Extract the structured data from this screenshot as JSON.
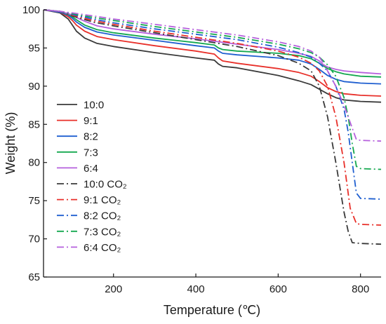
{
  "chart_data": {
    "type": "line",
    "xlabel": "Temperature (℃)",
    "ylabel": "Weight (%)",
    "xlim": [
      30,
      850
    ],
    "ylim": [
      65,
      100
    ],
    "xticks": [
      200,
      400,
      600,
      800
    ],
    "yticks": [
      65,
      70,
      75,
      80,
      85,
      90,
      95,
      100
    ],
    "grid": false,
    "legend_position": "left",
    "series": [
      {
        "name": "10:0",
        "color": "#3a3a3a",
        "dash": "solid",
        "x": [
          30,
          70,
          90,
          100,
          110,
          130,
          160,
          200,
          300,
          400,
          445,
          455,
          465,
          500,
          600,
          650,
          680,
          700,
          720,
          740,
          760,
          800,
          850
        ],
        "y": [
          100,
          99.6,
          98.8,
          98,
          97.2,
          96.3,
          95.6,
          95.2,
          94.4,
          93.7,
          93.4,
          92.9,
          92.6,
          92.4,
          91.4,
          90.7,
          90.2,
          89.6,
          89,
          88.5,
          88.2,
          88,
          87.9
        ]
      },
      {
        "name": "9:1",
        "color": "#e8302a",
        "dash": "solid",
        "x": [
          30,
          70,
          90,
          100,
          110,
          130,
          160,
          200,
          300,
          400,
          445,
          455,
          465,
          500,
          600,
          650,
          680,
          700,
          720,
          740,
          760,
          800,
          850
        ],
        "y": [
          100,
          99.7,
          99.1,
          98.6,
          98,
          97.2,
          96.5,
          96.1,
          95.3,
          94.6,
          94.2,
          93.7,
          93.3,
          93,
          92.3,
          91.8,
          91.3,
          90.6,
          89.8,
          89.3,
          89,
          88.8,
          88.7
        ]
      },
      {
        "name": "8:2",
        "color": "#1f5fd0",
        "dash": "solid",
        "x": [
          30,
          70,
          90,
          100,
          110,
          130,
          160,
          200,
          300,
          400,
          445,
          455,
          465,
          500,
          600,
          650,
          680,
          700,
          720,
          740,
          760,
          800,
          850
        ],
        "y": [
          100,
          99.7,
          99.3,
          98.9,
          98.4,
          97.7,
          97.1,
          96.7,
          96,
          95.3,
          95,
          94.6,
          94.3,
          94.1,
          93.7,
          93.4,
          92.9,
          92.2,
          91.4,
          90.9,
          90.6,
          90.4,
          90.3
        ]
      },
      {
        "name": "7:3",
        "color": "#14a84f",
        "dash": "solid",
        "x": [
          30,
          70,
          90,
          100,
          110,
          130,
          160,
          200,
          300,
          400,
          445,
          455,
          465,
          500,
          600,
          650,
          680,
          700,
          720,
          740,
          760,
          800,
          850
        ],
        "y": [
          100,
          99.8,
          99.4,
          99.1,
          98.7,
          98,
          97.4,
          97,
          96.3,
          95.7,
          95.4,
          95,
          94.8,
          94.6,
          94.3,
          94,
          93.6,
          93,
          92.3,
          91.9,
          91.6,
          91.3,
          91.2
        ]
      },
      {
        "name": "6:4",
        "color": "#b660dd",
        "dash": "solid",
        "x": [
          30,
          70,
          90,
          100,
          110,
          130,
          160,
          200,
          300,
          400,
          500,
          600,
          650,
          680,
          700,
          710,
          720,
          740,
          760,
          800,
          850
        ],
        "y": [
          100,
          99.8,
          99.5,
          99.3,
          99,
          98.5,
          97.9,
          97.5,
          96.8,
          96.2,
          95.5,
          94.8,
          94.3,
          93.9,
          93.3,
          92.8,
          92.5,
          92.2,
          92,
          91.8,
          91.6
        ]
      },
      {
        "name": "10:0 CO₂",
        "color": "#3a3a3a",
        "dash": "dashdot",
        "x": [
          30,
          70,
          100,
          150,
          200,
          300,
          400,
          500,
          600,
          650,
          680,
          700,
          720,
          740,
          760,
          770,
          780,
          800,
          850
        ],
        "y": [
          100,
          99.8,
          99.2,
          98.4,
          97.9,
          97,
          96.1,
          95.2,
          94,
          93,
          92,
          90,
          86,
          80,
          73.5,
          71,
          69.5,
          69.4,
          69.3
        ]
      },
      {
        "name": "9:1 CO₂",
        "color": "#e8302a",
        "dash": "dashdot",
        "x": [
          30,
          70,
          100,
          150,
          200,
          300,
          400,
          500,
          600,
          650,
          680,
          700,
          720,
          740,
          760,
          775,
          790,
          800,
          850
        ],
        "y": [
          100,
          99.8,
          99.3,
          98.6,
          98.1,
          97.2,
          96.4,
          95.6,
          94.6,
          93.8,
          93,
          92,
          90,
          86,
          80,
          74,
          72,
          71.9,
          71.8
        ]
      },
      {
        "name": "8:2 CO₂",
        "color": "#1f5fd0",
        "dash": "dashdot",
        "x": [
          30,
          70,
          100,
          150,
          200,
          300,
          400,
          500,
          600,
          650,
          680,
          700,
          720,
          740,
          760,
          770,
          780,
          790,
          800,
          850
        ],
        "y": [
          100,
          99.8,
          99.4,
          98.8,
          98.3,
          97.5,
          96.8,
          96.1,
          95.1,
          94.4,
          93.8,
          93,
          92,
          90,
          87,
          84,
          80,
          76,
          75.3,
          75.2
        ]
      },
      {
        "name": "7:3 CO₂",
        "color": "#14a84f",
        "dash": "dashdot",
        "x": [
          30,
          70,
          100,
          150,
          200,
          300,
          400,
          500,
          600,
          650,
          680,
          700,
          720,
          740,
          760,
          770,
          780,
          790,
          800,
          850
        ],
        "y": [
          100,
          99.8,
          99.5,
          99,
          98.6,
          97.8,
          97.1,
          96.4,
          95.5,
          94.9,
          94.4,
          93.8,
          92.8,
          91.3,
          88.5,
          86,
          82.5,
          79.5,
          79.2,
          79.1
        ]
      },
      {
        "name": "6:4 CO₂",
        "color": "#b660dd",
        "dash": "dashdot",
        "x": [
          30,
          70,
          100,
          150,
          200,
          300,
          400,
          500,
          600,
          650,
          680,
          700,
          710,
          720,
          740,
          760,
          780,
          790,
          800,
          850
        ],
        "y": [
          100,
          99.8,
          99.6,
          99.2,
          98.8,
          98.1,
          97.4,
          96.7,
          95.8,
          95.2,
          94.6,
          93.8,
          93,
          92,
          90,
          87.5,
          84.5,
          83,
          82.9,
          82.8
        ]
      }
    ]
  }
}
